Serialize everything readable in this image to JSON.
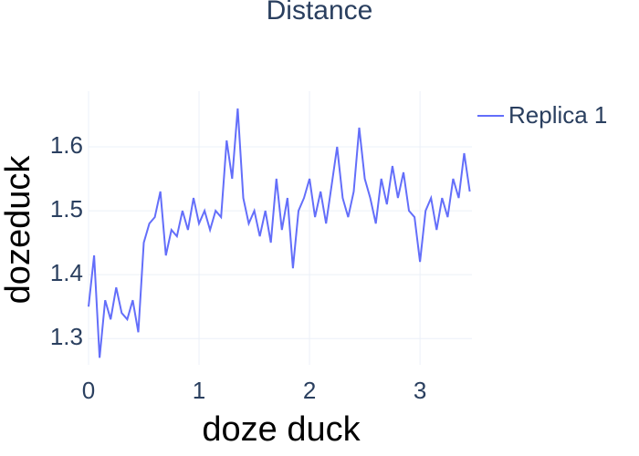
{
  "chart_data": {
    "type": "line",
    "title": "Distance",
    "x_label": "doze duck",
    "y_label": "dozeduck",
    "x": [
      0,
      0.05,
      0.1,
      0.15,
      0.2,
      0.25,
      0.3,
      0.35,
      0.4,
      0.45,
      0.5,
      0.55,
      0.6,
      0.65,
      0.7,
      0.75,
      0.8,
      0.85,
      0.9,
      0.95,
      1.0,
      1.05,
      1.1,
      1.15,
      1.2,
      1.25,
      1.3,
      1.35,
      1.4,
      1.45,
      1.5,
      1.55,
      1.6,
      1.65,
      1.7,
      1.75,
      1.8,
      1.85,
      1.9,
      1.95,
      2.0,
      2.05,
      2.1,
      2.15,
      2.2,
      2.25,
      2.3,
      2.35,
      2.4,
      2.45,
      2.5,
      2.55,
      2.6,
      2.65,
      2.7,
      2.75,
      2.8,
      2.85,
      2.9,
      2.95,
      3.0,
      3.05,
      3.1,
      3.15,
      3.2,
      3.25,
      3.3,
      3.35,
      3.4,
      3.45
    ],
    "series": [
      {
        "name": "Replica 1",
        "color": "#636efa",
        "values": [
          1.35,
          1.43,
          1.27,
          1.36,
          1.33,
          1.38,
          1.34,
          1.33,
          1.36,
          1.31,
          1.45,
          1.48,
          1.49,
          1.53,
          1.43,
          1.47,
          1.46,
          1.5,
          1.47,
          1.52,
          1.48,
          1.5,
          1.47,
          1.5,
          1.49,
          1.61,
          1.55,
          1.66,
          1.52,
          1.48,
          1.5,
          1.46,
          1.5,
          1.45,
          1.55,
          1.47,
          1.52,
          1.41,
          1.5,
          1.52,
          1.55,
          1.49,
          1.53,
          1.48,
          1.54,
          1.6,
          1.52,
          1.49,
          1.53,
          1.63,
          1.55,
          1.52,
          1.48,
          1.55,
          1.51,
          1.57,
          1.52,
          1.56,
          1.5,
          1.49,
          1.42,
          1.5,
          1.52,
          1.47,
          1.52,
          1.49,
          1.55,
          1.52,
          1.59,
          1.53
        ]
      }
    ],
    "xlim": [
      0,
      3.47
    ],
    "ylim": [
      1.259,
      1.687
    ],
    "xticks": [
      0,
      1,
      2,
      3
    ],
    "yticks": [
      1.3,
      1.4,
      1.5,
      1.6
    ],
    "grid": true
  }
}
